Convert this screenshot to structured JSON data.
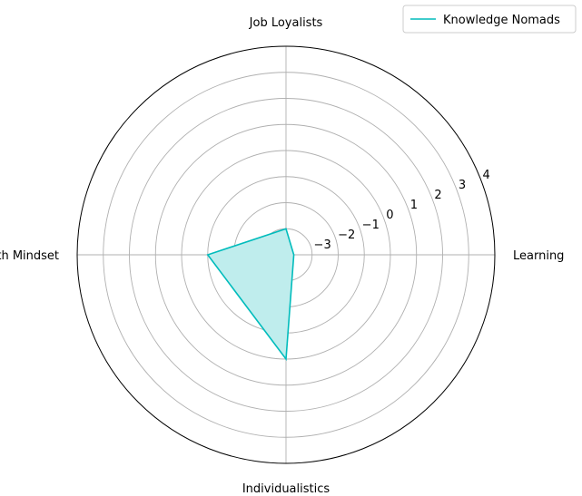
{
  "colors": {
    "series": "#00bcbc",
    "fill": "#bfeded",
    "grid": "#b0b0b0",
    "frame": "#000000",
    "text": "#000000"
  },
  "chart_data": {
    "type": "radar",
    "title": "",
    "axes": [
      "Learning",
      "Job Loyalists",
      "Growth Mindset",
      "Individualistics"
    ],
    "rlim": [
      -4,
      4
    ],
    "rticks": [
      -3,
      -2,
      -1,
      0,
      1,
      2,
      3,
      4
    ],
    "rtick_labels": [
      "−3",
      "−2",
      "−1",
      "0",
      "1",
      "2",
      "3",
      "4"
    ],
    "grid": true,
    "legend": "top-right",
    "series": [
      {
        "name": "Knowledge Nomads",
        "values": [
          -3.7,
          -3.0,
          -1.0,
          -0.0
        ]
      }
    ]
  }
}
